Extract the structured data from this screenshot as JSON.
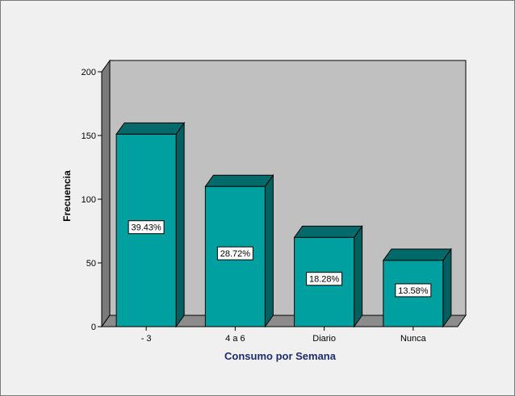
{
  "chart_data": {
    "type": "bar",
    "title": "",
    "xlabel": "Consumo por Semana",
    "ylabel": "Frecuencia",
    "categories": [
      "- 3",
      "4 a 6",
      "Diario",
      "Nunca"
    ],
    "values": [
      151,
      110,
      70,
      52
    ],
    "data_labels": [
      "39.43%",
      "28.72%",
      "18.28%",
      "13.58%"
    ],
    "ylim": [
      0,
      200
    ],
    "yticks": [
      0,
      50,
      100,
      150,
      200
    ],
    "grid": false,
    "legend": "none",
    "style": "3d"
  },
  "colors": {
    "background": "#f0f0f0",
    "plot_wall": "#c0c0c0",
    "side_wall": "#7a7a7a",
    "floor": "#8c8c8c",
    "bar_front": "#00a0a0",
    "bar_top": "#006a6a",
    "bar_side": "#006060",
    "xlabel": "#1f2b6b"
  }
}
